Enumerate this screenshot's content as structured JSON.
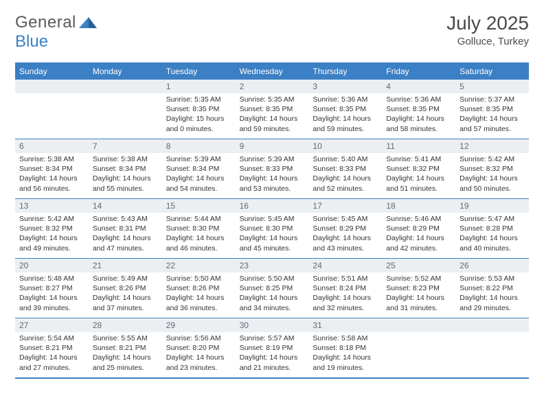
{
  "logo": {
    "text1": "General",
    "text2": "Blue"
  },
  "title": "July 2025",
  "location": "Golluce, Turkey",
  "colors": {
    "accent": "#3b7fc4",
    "header_text": "#ffffff",
    "daynum_bg": "#eceff1",
    "daynum_text": "#5c6a78",
    "body_text": "#333333",
    "title_text": "#4a4a4a",
    "page_bg": "#ffffff"
  },
  "columns": [
    "Sunday",
    "Monday",
    "Tuesday",
    "Wednesday",
    "Thursday",
    "Friday",
    "Saturday"
  ],
  "weeks": [
    [
      null,
      null,
      {
        "d": "1",
        "sr": "5:35 AM",
        "ss": "8:35 PM",
        "dl": "15 hours and 0 minutes."
      },
      {
        "d": "2",
        "sr": "5:35 AM",
        "ss": "8:35 PM",
        "dl": "14 hours and 59 minutes."
      },
      {
        "d": "3",
        "sr": "5:36 AM",
        "ss": "8:35 PM",
        "dl": "14 hours and 59 minutes."
      },
      {
        "d": "4",
        "sr": "5:36 AM",
        "ss": "8:35 PM",
        "dl": "14 hours and 58 minutes."
      },
      {
        "d": "5",
        "sr": "5:37 AM",
        "ss": "8:35 PM",
        "dl": "14 hours and 57 minutes."
      }
    ],
    [
      {
        "d": "6",
        "sr": "5:38 AM",
        "ss": "8:34 PM",
        "dl": "14 hours and 56 minutes."
      },
      {
        "d": "7",
        "sr": "5:38 AM",
        "ss": "8:34 PM",
        "dl": "14 hours and 55 minutes."
      },
      {
        "d": "8",
        "sr": "5:39 AM",
        "ss": "8:34 PM",
        "dl": "14 hours and 54 minutes."
      },
      {
        "d": "9",
        "sr": "5:39 AM",
        "ss": "8:33 PM",
        "dl": "14 hours and 53 minutes."
      },
      {
        "d": "10",
        "sr": "5:40 AM",
        "ss": "8:33 PM",
        "dl": "14 hours and 52 minutes."
      },
      {
        "d": "11",
        "sr": "5:41 AM",
        "ss": "8:32 PM",
        "dl": "14 hours and 51 minutes."
      },
      {
        "d": "12",
        "sr": "5:42 AM",
        "ss": "8:32 PM",
        "dl": "14 hours and 50 minutes."
      }
    ],
    [
      {
        "d": "13",
        "sr": "5:42 AM",
        "ss": "8:32 PM",
        "dl": "14 hours and 49 minutes."
      },
      {
        "d": "14",
        "sr": "5:43 AM",
        "ss": "8:31 PM",
        "dl": "14 hours and 47 minutes."
      },
      {
        "d": "15",
        "sr": "5:44 AM",
        "ss": "8:30 PM",
        "dl": "14 hours and 46 minutes."
      },
      {
        "d": "16",
        "sr": "5:45 AM",
        "ss": "8:30 PM",
        "dl": "14 hours and 45 minutes."
      },
      {
        "d": "17",
        "sr": "5:45 AM",
        "ss": "8:29 PM",
        "dl": "14 hours and 43 minutes."
      },
      {
        "d": "18",
        "sr": "5:46 AM",
        "ss": "8:29 PM",
        "dl": "14 hours and 42 minutes."
      },
      {
        "d": "19",
        "sr": "5:47 AM",
        "ss": "8:28 PM",
        "dl": "14 hours and 40 minutes."
      }
    ],
    [
      {
        "d": "20",
        "sr": "5:48 AM",
        "ss": "8:27 PM",
        "dl": "14 hours and 39 minutes."
      },
      {
        "d": "21",
        "sr": "5:49 AM",
        "ss": "8:26 PM",
        "dl": "14 hours and 37 minutes."
      },
      {
        "d": "22",
        "sr": "5:50 AM",
        "ss": "8:26 PM",
        "dl": "14 hours and 36 minutes."
      },
      {
        "d": "23",
        "sr": "5:50 AM",
        "ss": "8:25 PM",
        "dl": "14 hours and 34 minutes."
      },
      {
        "d": "24",
        "sr": "5:51 AM",
        "ss": "8:24 PM",
        "dl": "14 hours and 32 minutes."
      },
      {
        "d": "25",
        "sr": "5:52 AM",
        "ss": "8:23 PM",
        "dl": "14 hours and 31 minutes."
      },
      {
        "d": "26",
        "sr": "5:53 AM",
        "ss": "8:22 PM",
        "dl": "14 hours and 29 minutes."
      }
    ],
    [
      {
        "d": "27",
        "sr": "5:54 AM",
        "ss": "8:21 PM",
        "dl": "14 hours and 27 minutes."
      },
      {
        "d": "28",
        "sr": "5:55 AM",
        "ss": "8:21 PM",
        "dl": "14 hours and 25 minutes."
      },
      {
        "d": "29",
        "sr": "5:56 AM",
        "ss": "8:20 PM",
        "dl": "14 hours and 23 minutes."
      },
      {
        "d": "30",
        "sr": "5:57 AM",
        "ss": "8:19 PM",
        "dl": "14 hours and 21 minutes."
      },
      {
        "d": "31",
        "sr": "5:58 AM",
        "ss": "8:18 PM",
        "dl": "14 hours and 19 minutes."
      },
      null,
      null
    ]
  ],
  "labels": {
    "sunrise": "Sunrise: ",
    "sunset": "Sunset: ",
    "daylight": "Daylight: "
  }
}
